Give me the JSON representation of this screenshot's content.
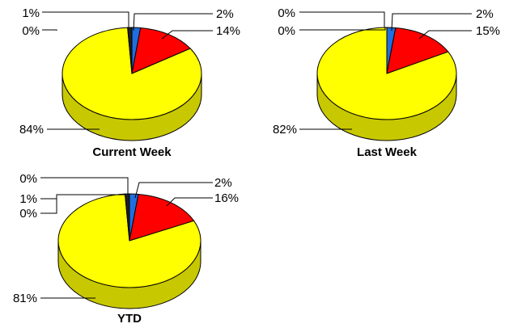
{
  "chart_data": [
    {
      "type": "pie",
      "title": "Current Week",
      "slices": [
        {
          "value": 2,
          "label": "2%",
          "color": "#1f6fe0"
        },
        {
          "value": 14,
          "label": "14%",
          "color": "#ff0000"
        },
        {
          "value": 84,
          "label": "84%",
          "color": "#ffff00"
        },
        {
          "value": 0,
          "label": "0%",
          "color": "#ffff00"
        },
        {
          "value": 1,
          "label": "1%",
          "color": "#202020"
        }
      ]
    },
    {
      "type": "pie",
      "title": "Last Week",
      "slices": [
        {
          "value": 2,
          "label": "2%",
          "color": "#1f6fe0"
        },
        {
          "value": 15,
          "label": "15%",
          "color": "#ff0000"
        },
        {
          "value": 82,
          "label": "82%",
          "color": "#ffff00"
        },
        {
          "value": 0,
          "label": "0%",
          "color": "#ffff00"
        },
        {
          "value": 0,
          "label": "0%",
          "color": "#202020"
        }
      ]
    },
    {
      "type": "pie",
      "title": "YTD",
      "slices": [
        {
          "value": 2,
          "label": "2%",
          "color": "#1f6fe0"
        },
        {
          "value": 16,
          "label": "16%",
          "color": "#ff0000"
        },
        {
          "value": 81,
          "label": "81%",
          "color": "#ffff00"
        },
        {
          "value": 0,
          "label": "0%",
          "color": "#ffff00"
        },
        {
          "value": 1,
          "label": "1%",
          "color": "#202020"
        },
        {
          "value": 0,
          "label": "0%",
          "color": "#ffff00"
        }
      ]
    }
  ]
}
